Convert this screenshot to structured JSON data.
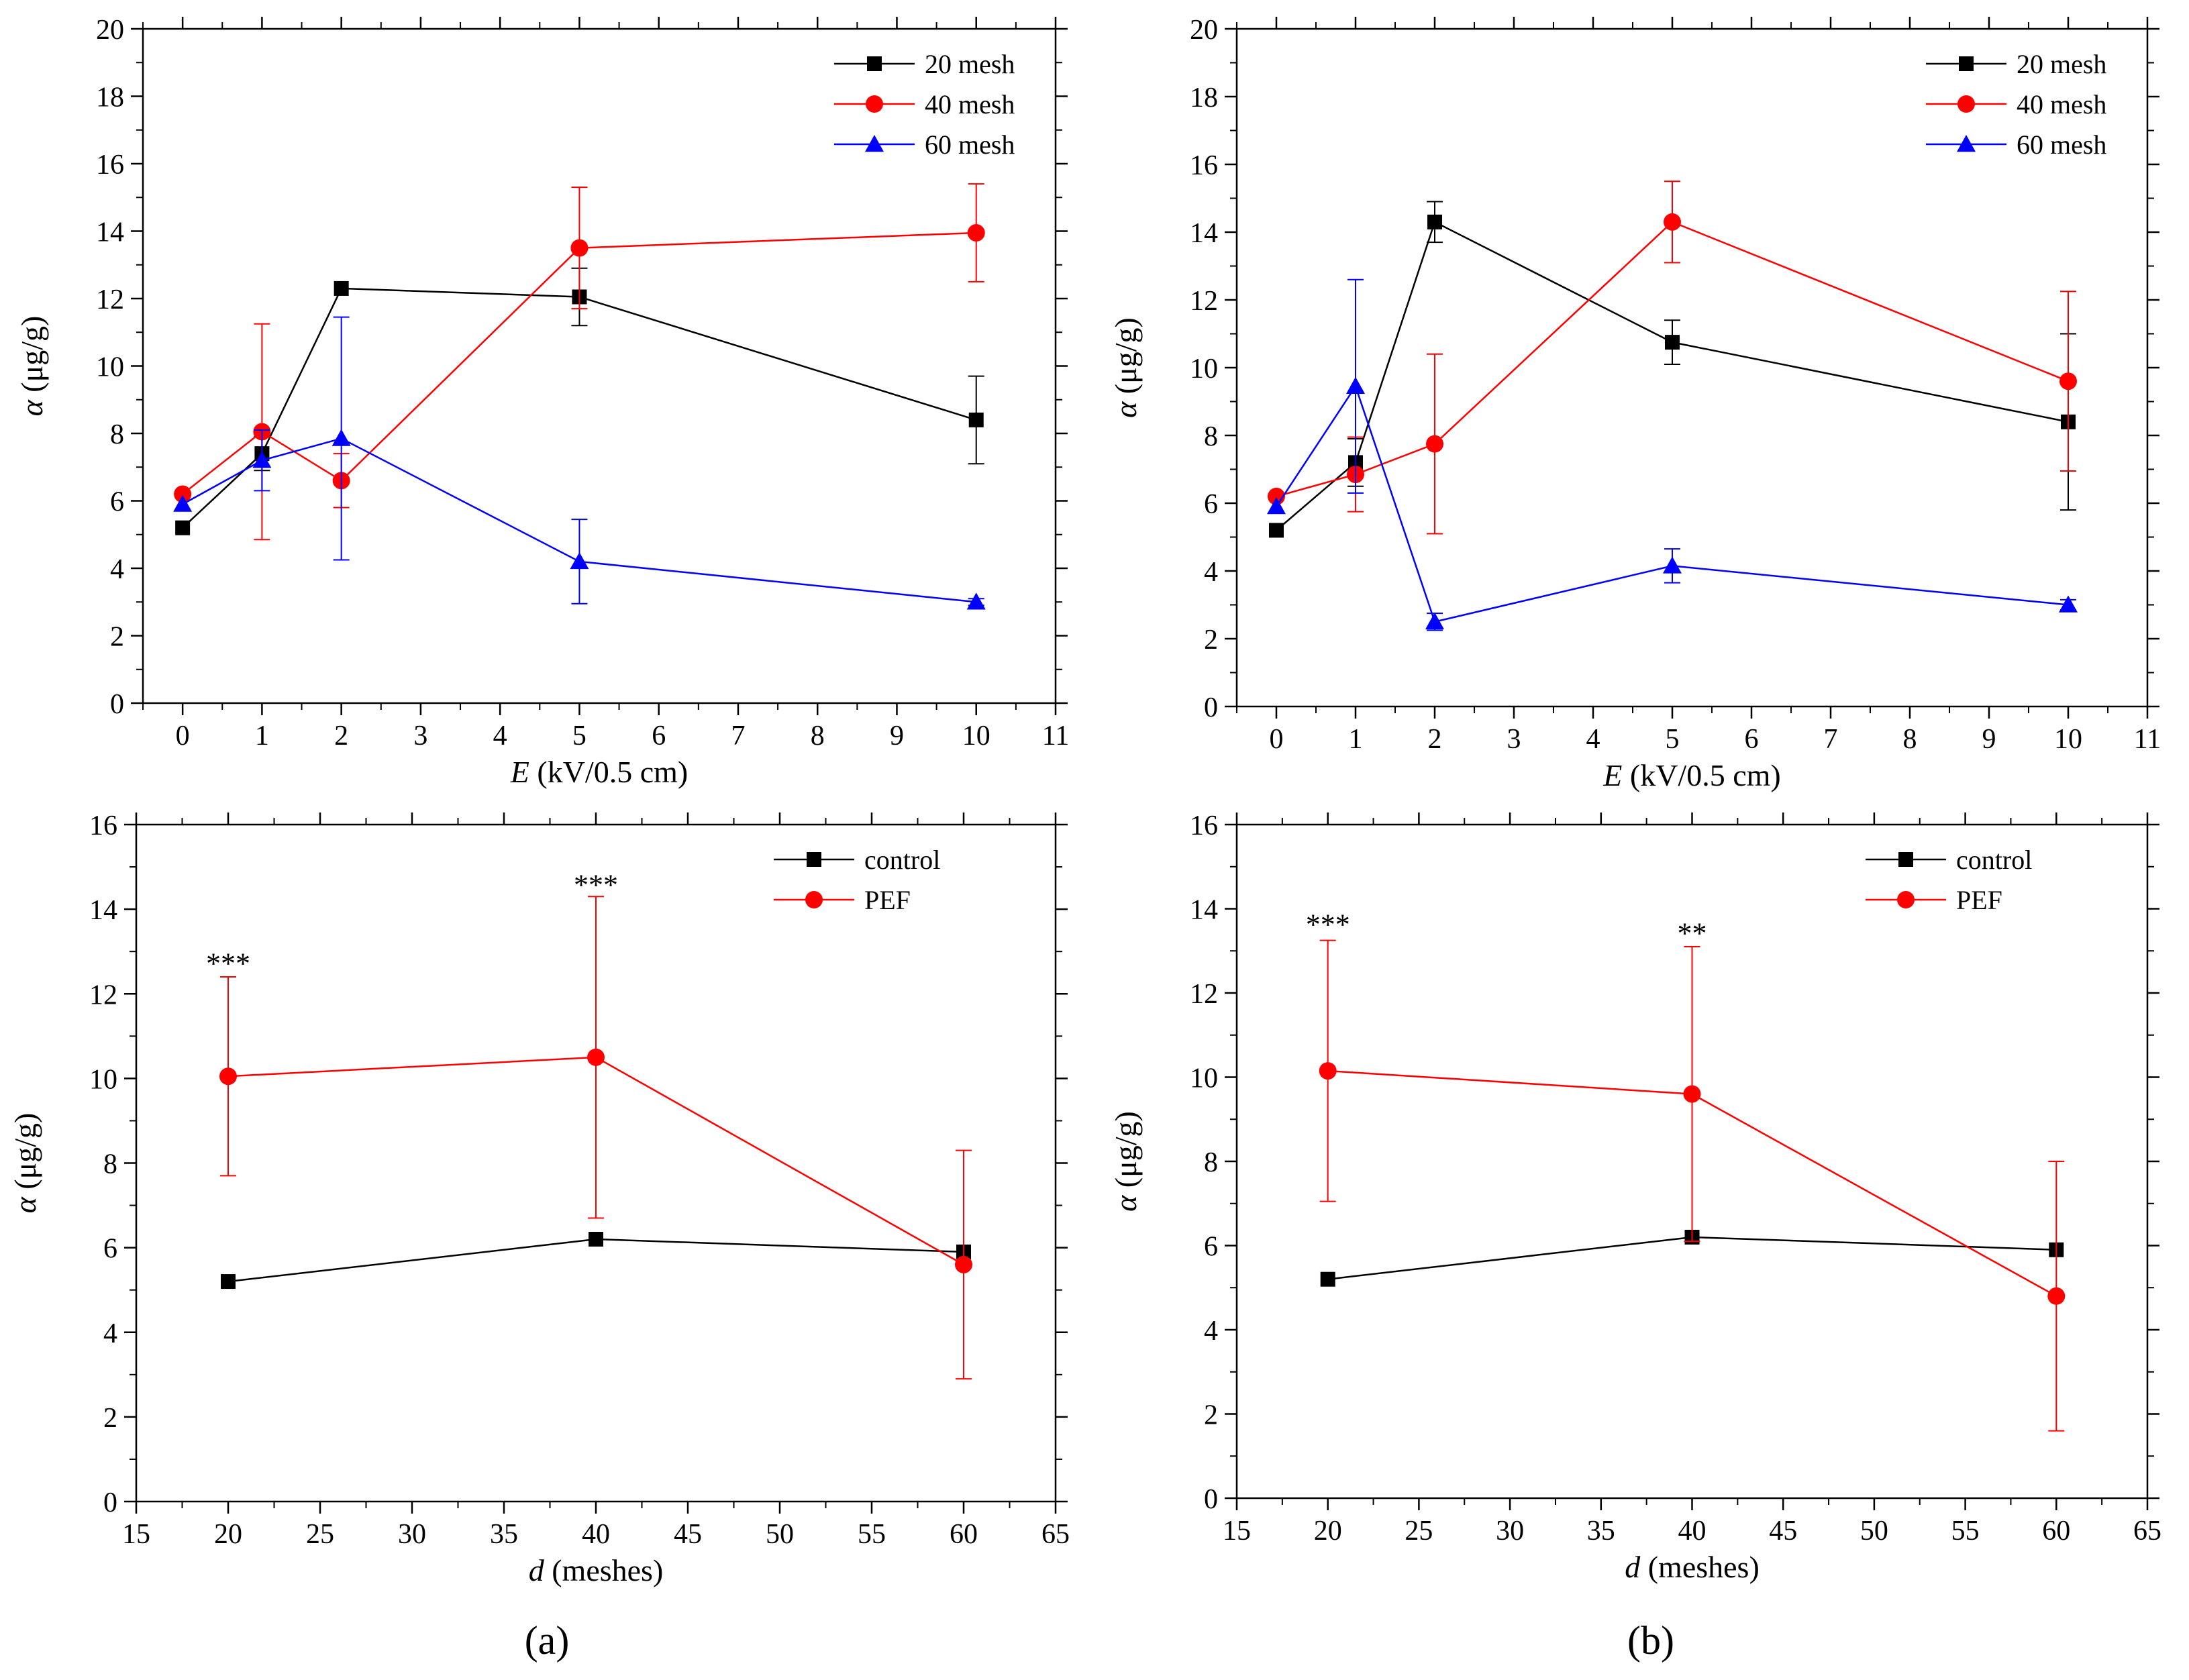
{
  "figure": {
    "panel_labels": [
      "(a)",
      "(b)"
    ]
  },
  "chart_data": [
    {
      "id": "a-top",
      "type": "line",
      "title": "",
      "xlabel_italic": "E",
      "xlabel_rest": " (kV/0.5 cm)",
      "ylabel_italic": "α",
      "ylabel_rest": " (μg/g)",
      "xlim": [
        -0.5,
        11
      ],
      "ylim": [
        0,
        20
      ],
      "xticks": [
        0,
        1,
        2,
        3,
        4,
        5,
        6,
        7,
        8,
        9,
        10,
        11
      ],
      "yticks": [
        0,
        2,
        4,
        6,
        8,
        10,
        12,
        14,
        16,
        18,
        20
      ],
      "legend_position": "top-right",
      "annotations": [],
      "series": [
        {
          "name": "20 mesh",
          "color": "#000000",
          "marker": "square",
          "x": [
            0,
            1,
            2,
            5,
            10
          ],
          "y": [
            5.2,
            7.4,
            12.3,
            12.05,
            8.4
          ],
          "err": [
            0,
            0.5,
            0,
            0.85,
            1.3
          ]
        },
        {
          "name": "40 mesh",
          "color": "#ff0000",
          "marker": "circle",
          "x": [
            0,
            1,
            2,
            5,
            10
          ],
          "y": [
            6.2,
            8.05,
            6.6,
            13.5,
            13.95
          ],
          "err": [
            0,
            3.2,
            0.8,
            1.8,
            1.45
          ]
        },
        {
          "name": "60 mesh",
          "color": "#0000ff",
          "marker": "triangle",
          "x": [
            0,
            1,
            2,
            5,
            10
          ],
          "y": [
            5.9,
            7.2,
            7.85,
            4.2,
            3.0
          ],
          "err": [
            0,
            0.9,
            3.6,
            1.25,
            0.1
          ]
        }
      ]
    },
    {
      "id": "b-top",
      "type": "line",
      "title": "",
      "xlabel_italic": "E",
      "xlabel_rest": " (kV/0.5 cm)",
      "ylabel_italic": "α",
      "ylabel_rest": " (μg/g)",
      "xlim": [
        -0.5,
        11
      ],
      "ylim": [
        0,
        20
      ],
      "xticks": [
        0,
        1,
        2,
        3,
        4,
        5,
        6,
        7,
        8,
        9,
        10,
        11
      ],
      "yticks": [
        0,
        2,
        4,
        6,
        8,
        10,
        12,
        14,
        16,
        18,
        20
      ],
      "legend_position": "top-right",
      "annotations": [],
      "series": [
        {
          "name": "20 mesh",
          "color": "#000000",
          "marker": "square",
          "x": [
            0,
            1,
            2,
            5,
            10
          ],
          "y": [
            5.2,
            7.2,
            14.3,
            10.75,
            8.4
          ],
          "err": [
            0,
            0.7,
            0.6,
            0.65,
            2.6
          ]
        },
        {
          "name": "40 mesh",
          "color": "#ff0000",
          "marker": "circle",
          "x": [
            0,
            1,
            2,
            5,
            10
          ],
          "y": [
            6.2,
            6.85,
            7.75,
            14.3,
            9.6
          ],
          "err": [
            0,
            1.1,
            2.65,
            1.2,
            2.65
          ]
        },
        {
          "name": "60 mesh",
          "color": "#0000ff",
          "marker": "triangle",
          "x": [
            0,
            1,
            2,
            5,
            10
          ],
          "y": [
            5.9,
            9.45,
            2.5,
            4.15,
            3.0
          ],
          "err": [
            0,
            3.15,
            0.25,
            0.5,
            0.15
          ]
        }
      ]
    },
    {
      "id": "a-bottom",
      "type": "line",
      "title": "",
      "xlabel_italic": "d",
      "xlabel_rest": " (meshes)",
      "ylabel_italic": "α",
      "ylabel_rest": " (μg/g)",
      "xlim": [
        15,
        65
      ],
      "ylim": [
        0,
        16
      ],
      "xticks": [
        15,
        20,
        25,
        30,
        35,
        40,
        45,
        50,
        55,
        60,
        65
      ],
      "yticks": [
        0,
        2,
        4,
        6,
        8,
        10,
        12,
        14,
        16
      ],
      "legend_position": "top-right",
      "annotations": [
        {
          "x": 20,
          "y": 12.65,
          "text": "***"
        },
        {
          "x": 40,
          "y": 14.5,
          "text": "***"
        }
      ],
      "series": [
        {
          "name": "control",
          "color": "#000000",
          "marker": "square",
          "x": [
            20,
            40,
            60
          ],
          "y": [
            5.2,
            6.2,
            5.9
          ],
          "err": [
            0,
            0,
            0
          ]
        },
        {
          "name": "PEF",
          "color": "#ff0000",
          "marker": "circle",
          "x": [
            20,
            40,
            60
          ],
          "y": [
            10.05,
            10.5,
            5.6
          ],
          "err": [
            2.35,
            3.8,
            2.7
          ]
        }
      ]
    },
    {
      "id": "b-bottom",
      "type": "line",
      "title": "",
      "xlabel_italic": "d",
      "xlabel_rest": " (meshes)",
      "ylabel_italic": "α",
      "ylabel_rest": " (μg/g)",
      "xlim": [
        15,
        65
      ],
      "ylim": [
        0,
        16
      ],
      "xticks": [
        15,
        20,
        25,
        30,
        35,
        40,
        45,
        50,
        55,
        60,
        65
      ],
      "yticks": [
        0,
        2,
        4,
        6,
        8,
        10,
        12,
        14,
        16
      ],
      "legend_position": "top-right",
      "annotations": [
        {
          "x": 20,
          "y": 13.55,
          "text": "***"
        },
        {
          "x": 40,
          "y": 13.35,
          "text": "**"
        }
      ],
      "series": [
        {
          "name": "control",
          "color": "#000000",
          "marker": "square",
          "x": [
            20,
            40,
            60
          ],
          "y": [
            5.2,
            6.2,
            5.9
          ],
          "err": [
            0,
            0,
            0
          ]
        },
        {
          "name": "PEF",
          "color": "#ff0000",
          "marker": "circle",
          "x": [
            20,
            40,
            60
          ],
          "y": [
            10.15,
            9.6,
            4.8
          ],
          "err": [
            3.1,
            3.5,
            3.2
          ]
        }
      ]
    }
  ]
}
